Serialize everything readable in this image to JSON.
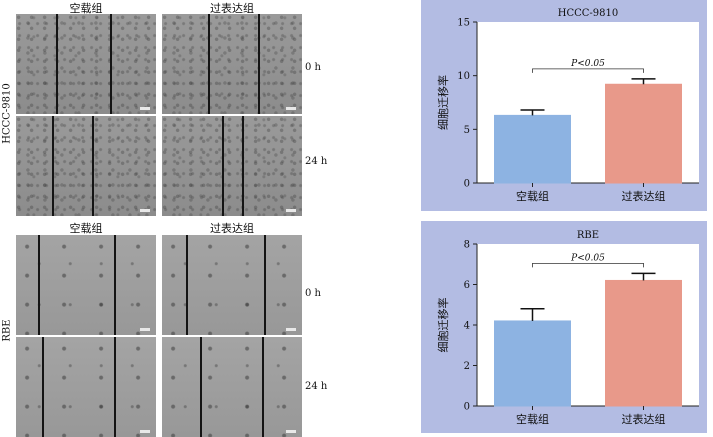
{
  "micrograph_panel": {
    "hccc": {
      "row_label": "HCCC-9810",
      "col_labels": [
        "空载组",
        "过表达组"
      ],
      "time_labels": [
        "0 h",
        "24 h"
      ]
    },
    "rbe": {
      "row_label": "RBE",
      "col_labels": [
        "空载组",
        "过表达组"
      ],
      "time_labels": [
        "0 h",
        "24 h"
      ]
    }
  },
  "chart_data": [
    {
      "type": "bar",
      "title": "HCCC-9810",
      "ylabel": "细胞迁移率",
      "xlabel": "",
      "categories": [
        "空载组",
        "过表达组"
      ],
      "values": [
        6.3,
        9.2
      ],
      "errors": [
        0.5,
        0.5
      ],
      "colors": [
        "#8db3e2",
        "#e8998a"
      ],
      "ylim": [
        0,
        15
      ],
      "yticks": [
        "0",
        "5",
        "10",
        "15"
      ],
      "annotation": "P<0.05",
      "grid": false
    },
    {
      "type": "bar",
      "title": "RBE",
      "ylabel": "细胞迁移率",
      "xlabel": "",
      "categories": [
        "空载组",
        "过表达组"
      ],
      "values": [
        4.2,
        6.2
      ],
      "errors": [
        0.6,
        0.35
      ],
      "colors": [
        "#8db3e2",
        "#e8998a"
      ],
      "ylim": [
        0,
        8
      ],
      "yticks": [
        "0",
        "2",
        "4",
        "6",
        "8"
      ],
      "annotation": "P<0.05",
      "grid": false
    }
  ]
}
